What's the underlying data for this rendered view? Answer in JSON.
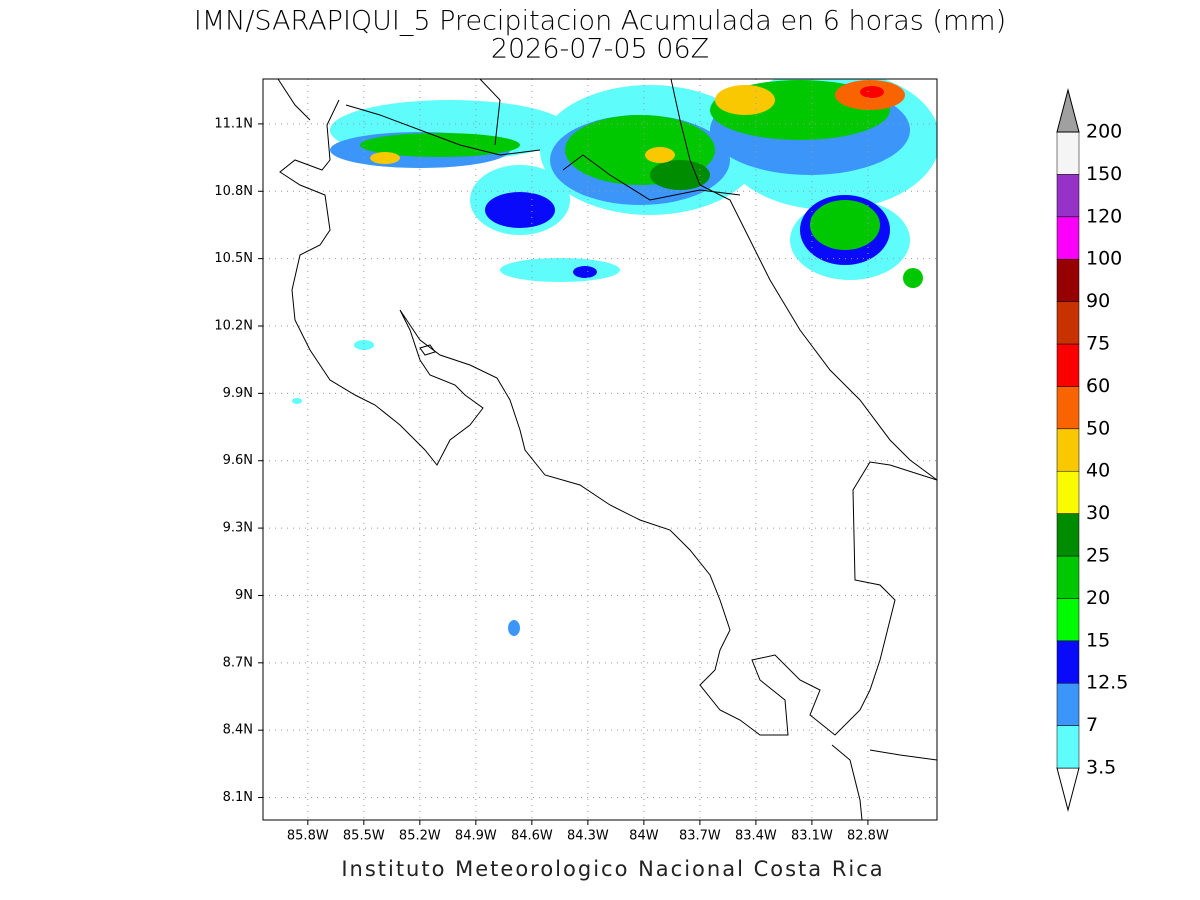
{
  "title": "IMN/SARAPIQUI_5 Precipitacion Acumulada en 6 horas (mm)",
  "subtitle": "2026-07-05 06Z",
  "footer": "Instituto Meteorologico Nacional Costa Rica",
  "map": {
    "xlim": [
      -86.04,
      -82.43
    ],
    "ylim": [
      8.0,
      11.3
    ],
    "xticks": [
      {
        "value": -85.8,
        "label": "85.8W"
      },
      {
        "value": -85.5,
        "label": "85.5W"
      },
      {
        "value": -85.2,
        "label": "85.2W"
      },
      {
        "value": -84.9,
        "label": "84.9W"
      },
      {
        "value": -84.6,
        "label": "84.6W"
      },
      {
        "value": -84.3,
        "label": "84.3W"
      },
      {
        "value": -84.0,
        "label": "84W"
      },
      {
        "value": -83.7,
        "label": "83.7W"
      },
      {
        "value": -83.4,
        "label": "83.4W"
      },
      {
        "value": -83.1,
        "label": "83.1W"
      },
      {
        "value": -82.8,
        "label": "82.8W"
      }
    ],
    "yticks": [
      {
        "value": 11.1,
        "label": "11.1N"
      },
      {
        "value": 10.8,
        "label": "10.8N"
      },
      {
        "value": 10.5,
        "label": "10.5N"
      },
      {
        "value": 10.2,
        "label": "10.2N"
      },
      {
        "value": 9.9,
        "label": "9.9N"
      },
      {
        "value": 9.6,
        "label": "9.6N"
      },
      {
        "value": 9.3,
        "label": "9.3N"
      },
      {
        "value": 9.0,
        "label": "9N"
      },
      {
        "value": 8.7,
        "label": "8.7N"
      },
      {
        "value": 8.4,
        "label": "8.4N"
      },
      {
        "value": 8.1,
        "label": "8.1N"
      }
    ],
    "grid": true
  },
  "colorbar": {
    "levels": [
      3.5,
      7,
      12.5,
      15,
      20,
      25,
      30,
      40,
      50,
      60,
      75,
      90,
      100,
      120,
      150,
      200
    ],
    "colors": [
      "#ffffff",
      "#5ffcfc",
      "#3c96fa",
      "#0a0afa",
      "#00fa00",
      "#00c800",
      "#008c00",
      "#fafa00",
      "#fac800",
      "#fa6400",
      "#fa0000",
      "#c83200",
      "#960000",
      "#fa00fa",
      "#9632c8",
      "#f5f5f5",
      "#a0a0a0"
    ]
  }
}
